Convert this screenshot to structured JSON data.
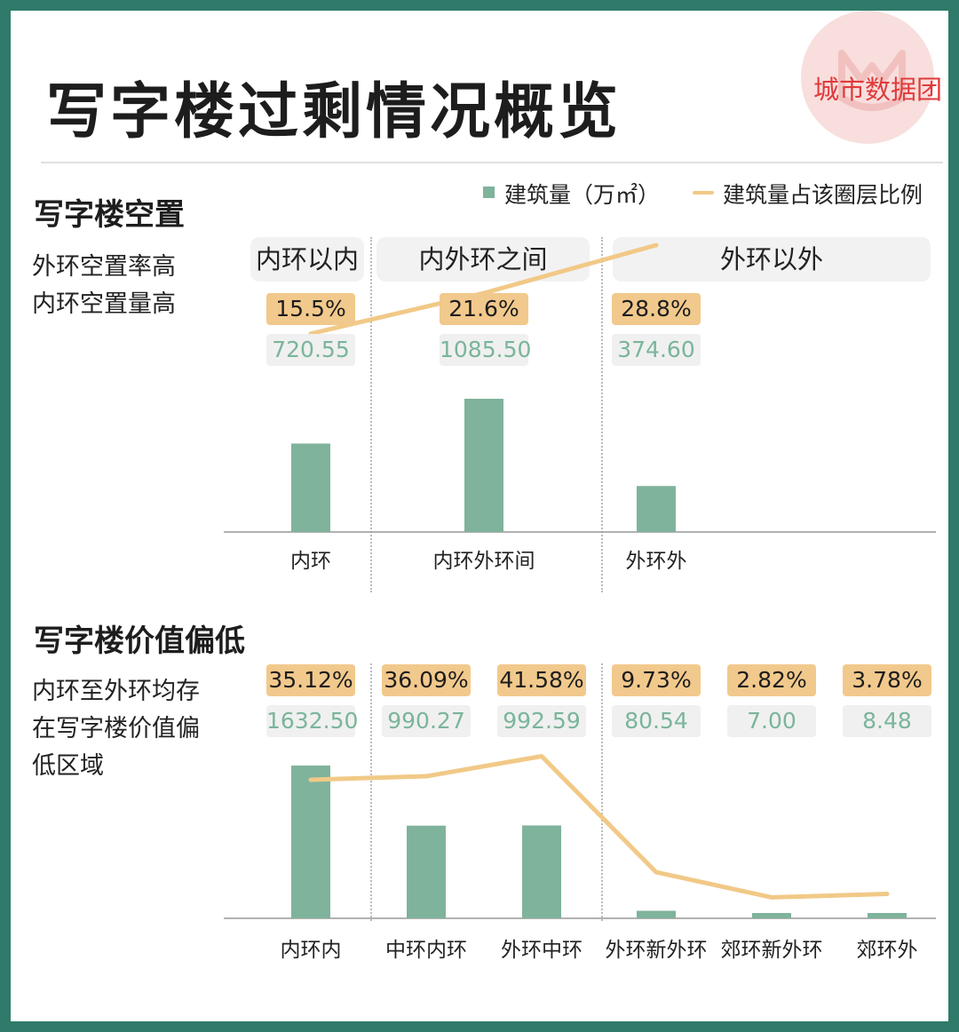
{
  "title": "写字楼过剩情况概览",
  "brand": "城市数据团",
  "colors": {
    "bar": "#7fb39b",
    "line": "#f1c987",
    "frame": "#2f7a6a"
  },
  "legend": {
    "bar_label": "建筑量（万㎡）",
    "line_label": "建筑量占该圈层比例"
  },
  "section1": {
    "title": "写字楼空置",
    "note": "外环空置率高\n内环空置量高",
    "zones": [
      "内环以内",
      "内外环之间",
      "外环以外"
    ]
  },
  "section2": {
    "title": "写字楼价值偏低",
    "note": "内环至外环均存\n在写字楼价值偏\n低区域"
  },
  "chart_data": [
    {
      "type": "bar",
      "categories": [
        "内环",
        "内环外环间",
        "外环外"
      ],
      "series": [
        {
          "name": "建筑量（万㎡）",
          "values": [
            720.55,
            1085.5,
            374.6
          ],
          "labels": [
            "720.55",
            "1085.50",
            "374.60"
          ]
        },
        {
          "name": "建筑量占该圈层比例",
          "values": [
            15.5,
            21.6,
            28.8
          ],
          "labels": [
            "15.5%",
            "21.6%",
            "28.8%"
          ]
        }
      ]
    },
    {
      "type": "bar",
      "categories": [
        "内环内",
        "中环内环",
        "外环中环",
        "外环新外环",
        "郊环新外环",
        "郊环外"
      ],
      "series": [
        {
          "name": "建筑量（万㎡）",
          "values": [
            1632.5,
            990.27,
            992.59,
            80.54,
            7.0,
            8.48
          ],
          "labels": [
            "1632.50",
            "990.27",
            "992.59",
            "80.54",
            "7.00",
            "8.48"
          ]
        },
        {
          "name": "建筑量占该圈层比例",
          "values": [
            35.12,
            36.09,
            41.58,
            9.73,
            2.82,
            3.78
          ],
          "labels": [
            "35.12%",
            "36.09%",
            "41.58%",
            "9.73%",
            "2.82%",
            "3.78%"
          ]
        }
      ]
    }
  ]
}
